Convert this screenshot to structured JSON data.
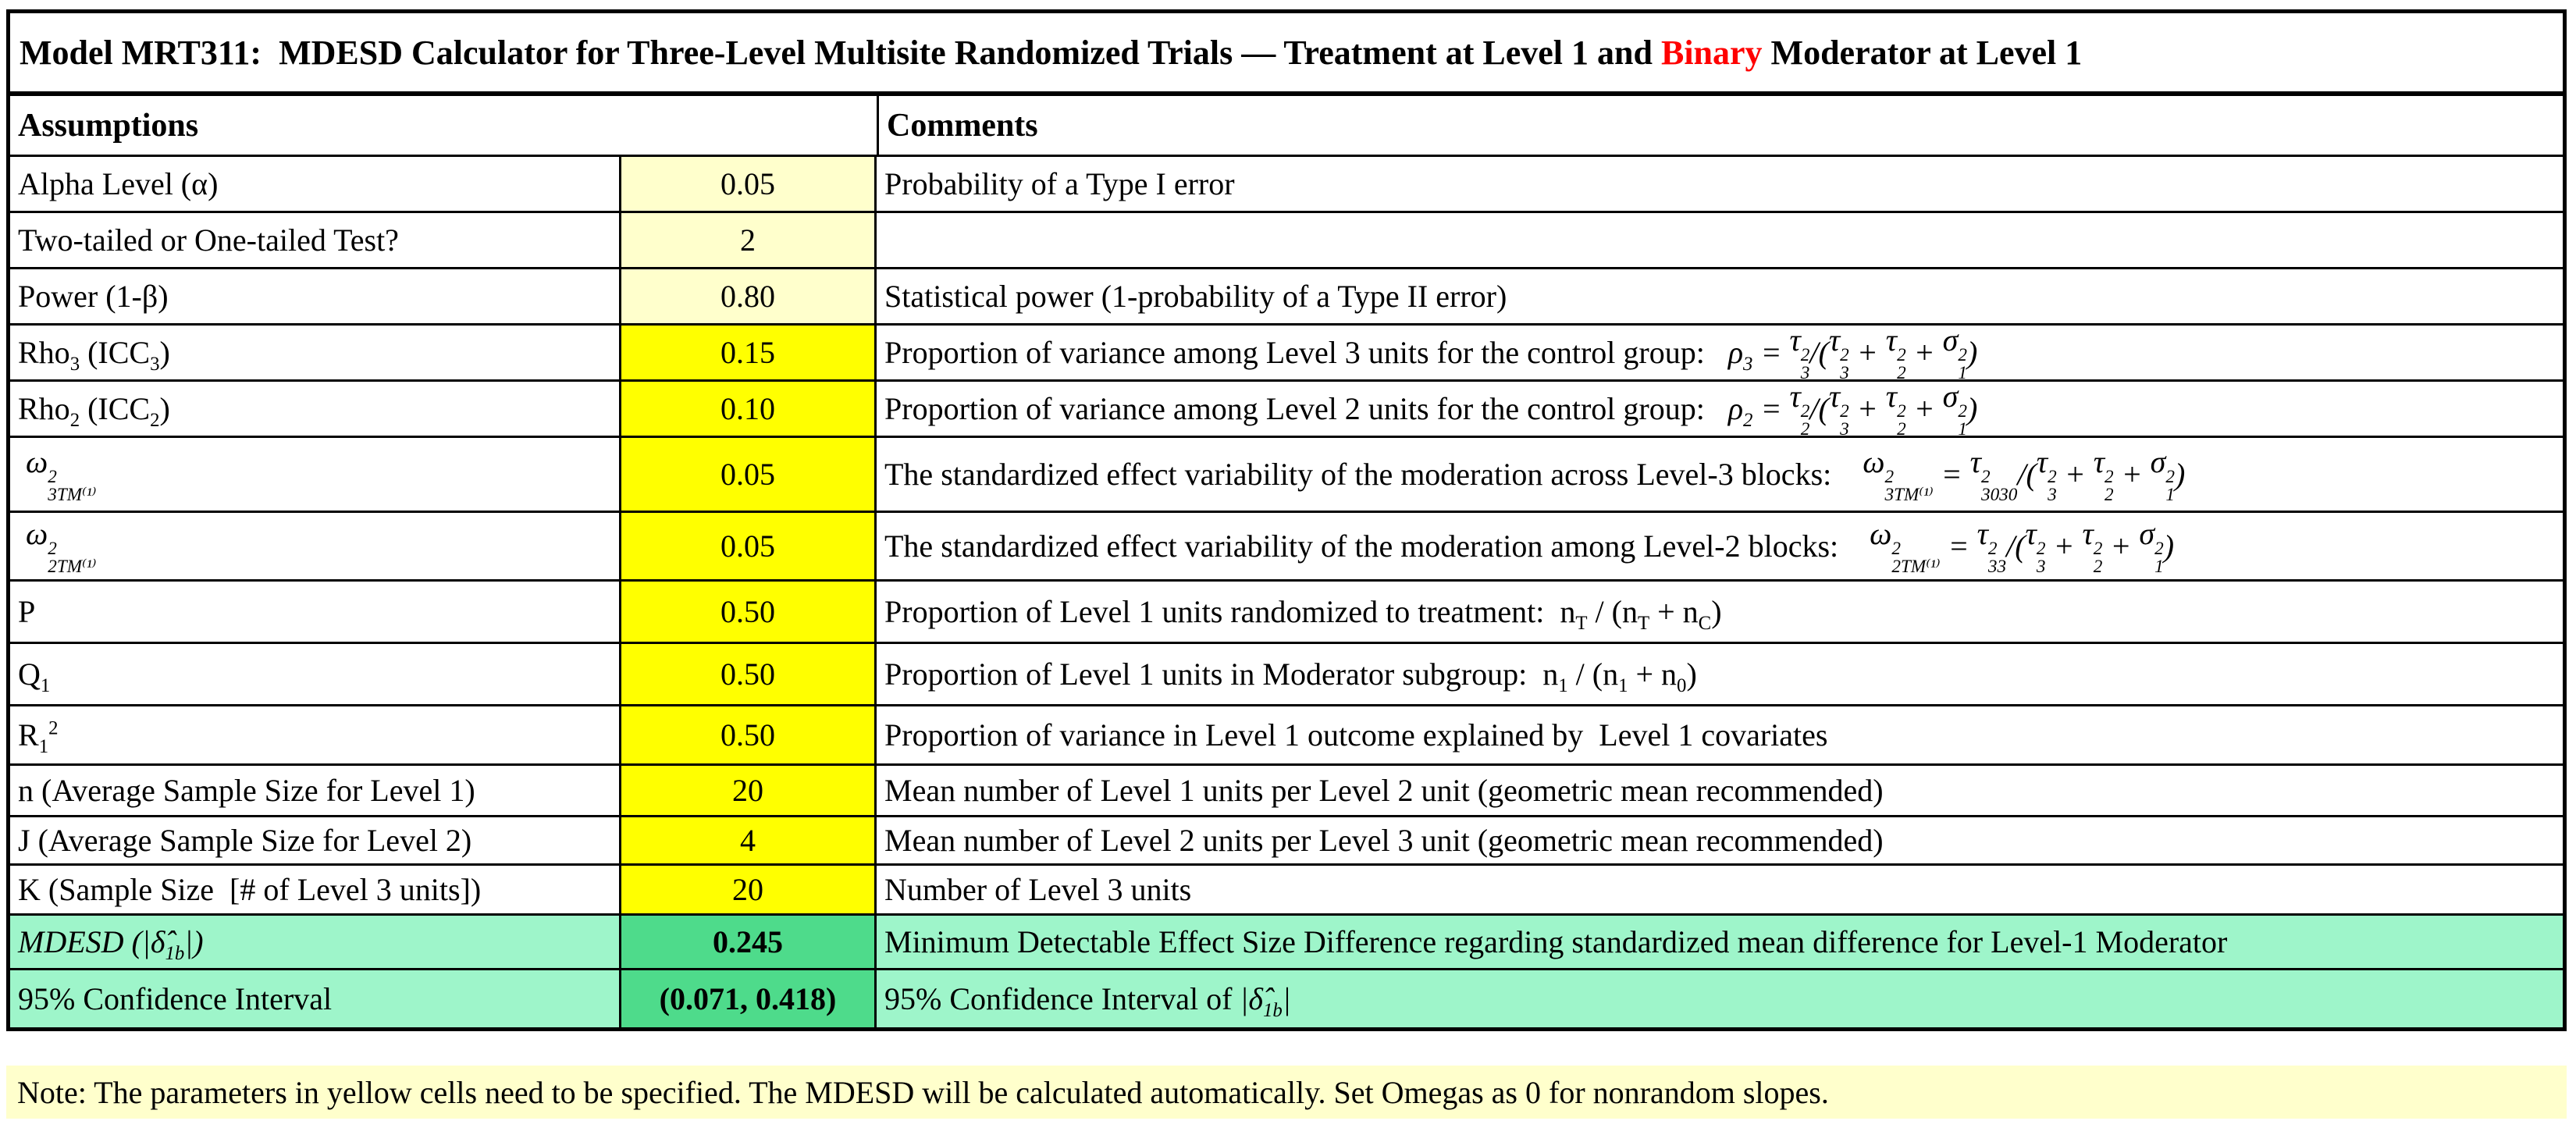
{
  "title": {
    "parts": [
      {
        "t": "Model MRT311:  MDESD Calculator for Three-Level Multisite Randomized Trials — Treatment at Level 1 and "
      },
      {
        "t": "Binary",
        "color": "#FF0000"
      },
      {
        "t": " Moderator at Level 1"
      }
    ]
  },
  "header": {
    "assumptions": "Assumptions",
    "comments": "Comments"
  },
  "colors": {
    "input_light_yellow": "#FFFFCC",
    "input_yellow": "#FFFF00",
    "result_light_green": "#9EF5CA",
    "result_green": "#4EDB8B",
    "accent_red": "#FF0000",
    "border": "#000000"
  },
  "rows": [
    {
      "label": [
        {
          "t": "Alpha Level (α)"
        }
      ],
      "value": "0.05",
      "value_bg": "light_yellow",
      "row_bg": null,
      "comment": [
        {
          "t": "Probability of a Type I error"
        }
      ]
    },
    {
      "label": [
        {
          "t": "Two-tailed or One-tailed Test?"
        }
      ],
      "value": "2",
      "value_bg": "light_yellow",
      "row_bg": null,
      "comment": []
    },
    {
      "label": [
        {
          "t": "Power (1-β)"
        }
      ],
      "value": "0.80",
      "value_bg": "light_yellow",
      "row_bg": null,
      "comment": [
        {
          "t": "Statistical power (1-probability of a Type II error)"
        }
      ]
    },
    {
      "label": [
        {
          "t": "Rho",
          "sub": "3"
        },
        {
          "t": " (ICC",
          "sub": "3"
        },
        {
          "t": ")"
        }
      ],
      "value": "0.15",
      "value_bg": "yellow",
      "row_bg": null,
      "comment": [
        {
          "t": "Proportion of variance among Level 3 units for the control group:   "
        },
        {
          "t": "ρ",
          "sub": "3",
          "i": true
        },
        {
          "t": " = ",
          "i": true
        },
        {
          "t": "τ",
          "sup": "2",
          "sub": "3",
          "i": true
        },
        {
          "t": "/(",
          "i": true
        },
        {
          "t": "τ",
          "sup": "2",
          "sub": "3",
          "i": true
        },
        {
          "t": " + ",
          "i": true
        },
        {
          "t": "τ",
          "sup": "2",
          "sub": "2",
          "i": true
        },
        {
          "t": " + ",
          "i": true
        },
        {
          "t": "σ",
          "sup": "2",
          "sub": "1",
          "i": true
        },
        {
          "t": ")",
          "i": true
        }
      ]
    },
    {
      "label": [
        {
          "t": "Rho",
          "sub": "2"
        },
        {
          "t": " (ICC",
          "sub": "2"
        },
        {
          "t": ")"
        }
      ],
      "value": "0.10",
      "value_bg": "yellow",
      "row_bg": null,
      "comment": [
        {
          "t": "Proportion of variance among Level 2 units for the control group:   "
        },
        {
          "t": "ρ",
          "sub": "2",
          "i": true
        },
        {
          "t": " = ",
          "i": true
        },
        {
          "t": "τ",
          "sup": "2",
          "sub": "2",
          "i": true
        },
        {
          "t": "/(",
          "i": true
        },
        {
          "t": "τ",
          "sup": "2",
          "sub": "3",
          "i": true
        },
        {
          "t": " + ",
          "i": true
        },
        {
          "t": "τ",
          "sup": "2",
          "sub": "2",
          "i": true
        },
        {
          "t": " + ",
          "i": true
        },
        {
          "t": "σ",
          "sup": "2",
          "sub": "1",
          "i": true
        },
        {
          "t": ")",
          "i": true
        }
      ]
    },
    {
      "label": [
        {
          "t": " ω",
          "sup": "2",
          "sub": "3TM⁽¹⁾",
          "i": true
        }
      ],
      "value": "0.05",
      "value_bg": "yellow",
      "row_bg": null,
      "comment": [
        {
          "t": "The standardized effect variability of the moderation across Level-3 blocks:    "
        },
        {
          "t": "ω",
          "sup": "2",
          "sub": "3TM⁽¹⁾",
          "i": true
        },
        {
          "t": " = ",
          "i": true
        },
        {
          "t": "τ",
          "sup": "2",
          "sub": "3030",
          "i": true
        },
        {
          "t": "/(",
          "i": true
        },
        {
          "t": "τ",
          "sup": "2",
          "sub": "3",
          "i": true
        },
        {
          "t": " + ",
          "i": true
        },
        {
          "t": "τ",
          "sup": "2",
          "sub": "2",
          "i": true
        },
        {
          "t": " + ",
          "i": true
        },
        {
          "t": "σ",
          "sup": "2",
          "sub": "1",
          "i": true
        },
        {
          "t": ")",
          "i": true
        }
      ]
    },
    {
      "label": [
        {
          "t": " ω",
          "sup": "2",
          "sub": "2TM⁽¹⁾",
          "i": true
        }
      ],
      "value": "0.05",
      "value_bg": "yellow",
      "row_bg": null,
      "comment": [
        {
          "t": "The standardized effect variability of the moderation among Level-2 blocks:    "
        },
        {
          "t": "ω",
          "sup": "2",
          "sub": "2TM⁽¹⁾",
          "i": true
        },
        {
          "t": " = ",
          "i": true
        },
        {
          "t": "τ",
          "sup": "2",
          "sub": "33",
          "i": true
        },
        {
          "t": "/(",
          "i": true
        },
        {
          "t": "τ",
          "sup": "2",
          "sub": "3",
          "i": true
        },
        {
          "t": " + ",
          "i": true
        },
        {
          "t": "τ",
          "sup": "2",
          "sub": "2",
          "i": true
        },
        {
          "t": " + ",
          "i": true
        },
        {
          "t": "σ",
          "sup": "2",
          "sub": "1",
          "i": true
        },
        {
          "t": ")",
          "i": true
        }
      ]
    },
    {
      "label": [
        {
          "t": "P"
        }
      ],
      "value": "0.50",
      "value_bg": "yellow",
      "row_bg": null,
      "comment": [
        {
          "t": "Proportion of Level 1 units randomized to treatment:  n",
          "sub": "T"
        },
        {
          "t": " / (n",
          "sub": "T"
        },
        {
          "t": " + n",
          "sub": "C"
        },
        {
          "t": ")"
        }
      ]
    },
    {
      "label": [
        {
          "t": "Q",
          "sub": "1"
        }
      ],
      "value": "0.50",
      "value_bg": "yellow",
      "row_bg": null,
      "comment": [
        {
          "t": "Proportion of Level 1 units in Moderator subgroup:  n",
          "sub": "1"
        },
        {
          "t": " / (n",
          "sub": "1"
        },
        {
          "t": " + n",
          "sub": "0"
        },
        {
          "t": ")"
        }
      ]
    },
    {
      "label": [
        {
          "t": "R",
          "sub": "1"
        },
        {
          "t": "",
          "sup": "2"
        }
      ],
      "value": "0.50",
      "value_bg": "yellow",
      "row_bg": null,
      "comment": [
        {
          "t": "Proportion of variance in Level 1 outcome explained by  Level 1 covariates"
        }
      ]
    },
    {
      "label": [
        {
          "t": "n (Average Sample Size for Level 1)"
        }
      ],
      "value": "20",
      "value_bg": "yellow",
      "row_bg": null,
      "comment": [
        {
          "t": "Mean number of Level 1 units per Level 2 unit (geometric mean recommended)"
        }
      ]
    },
    {
      "label": [
        {
          "t": "J (Average Sample Size for Level 2)"
        }
      ],
      "value": "4",
      "value_bg": "yellow",
      "row_bg": null,
      "comment": [
        {
          "t": "Mean number of Level 2 units per Level 3 unit (geometric mean recommended)"
        }
      ]
    },
    {
      "label": [
        {
          "t": "K (Sample Size  [# of Level 3 units])"
        }
      ],
      "value": "20",
      "value_bg": "yellow",
      "row_bg": null,
      "comment": [
        {
          "t": "Number of Level 3 units"
        }
      ]
    },
    {
      "label": [
        {
          "t": "MDESD (|",
          "i": true
        },
        {
          "t": "δ̂",
          "sub": "1b",
          "i": true
        },
        {
          "t": "|)",
          "i": true
        }
      ],
      "value": "0.245",
      "value_bg": "green",
      "row_bg": "green",
      "comment": [
        {
          "t": "Minimum Detectable Effect Size Difference regarding standardized mean difference for Level-1 Moderator"
        }
      ]
    },
    {
      "label": [
        {
          "t": "95% Confidence Interval"
        }
      ],
      "value": "(0.071, 0.418)",
      "value_bg": "green",
      "row_bg": "green",
      "comment": [
        {
          "t": "95% Confidence Interval of "
        },
        {
          "t": "|δ̂",
          "sub": "1b",
          "i": true
        },
        {
          "t": "|",
          "i": true
        }
      ]
    }
  ],
  "note": {
    "text": "Note: The parameters in yellow cells need to be specified. The MDESD will be calculated automatically. Set Omegas as 0 for nonrandom slopes."
  }
}
